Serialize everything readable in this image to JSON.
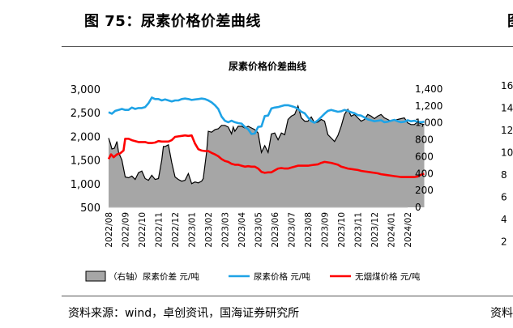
{
  "figure": {
    "title": "图 75：尿素价格价差曲线",
    "source": "资料来源：wind，卓创资讯，国海证券研究所",
    "right_title_fragment": "图",
    "right_source_fragment": "资料"
  },
  "right_axis_fragment": [
    "16",
    "14",
    "12",
    "10",
    "8",
    "6",
    "4",
    "2"
  ],
  "colors": {
    "area": "#a6a6a6",
    "urea": "#1fa3e6",
    "coal": "#ff0000"
  },
  "chart_data": {
    "type": "line",
    "title": "尿素价格价差曲线",
    "left_axis": {
      "min": 500,
      "max": 3000,
      "ticks": [
        "3,000",
        "2,500",
        "2,000",
        "1,500",
        "1,000",
        "500"
      ]
    },
    "right_axis": {
      "min": 0,
      "max": 1400,
      "ticks": [
        "1,400",
        "1,200",
        "1,000",
        "800",
        "600",
        "400",
        "200",
        "0"
      ]
    },
    "x_ticks": [
      "2022/08",
      "2022/09",
      "2022/10",
      "2022/11",
      "2022/12",
      "2023/01",
      "2023/02",
      "2023/03",
      "2023/04",
      "2023/05",
      "2023/06",
      "2023/07",
      "2023/08",
      "2023/09",
      "2023/10",
      "2023/11",
      "2023/12",
      "2024/01",
      "2024/02"
    ],
    "legend": [
      "（右轴）尿素价差  元/吨",
      "尿素价格  元/吨",
      "无烟煤价格  元/吨"
    ],
    "legend_position": "bottom",
    "grid": false,
    "series": [
      {
        "name": "（右轴）尿素价差  元/吨",
        "type": "area",
        "axis": "right",
        "x": [
          0,
          0.1,
          0.2,
          0.35,
          0.5,
          0.6,
          0.8,
          1.0,
          1.2,
          1.4,
          1.6,
          1.8,
          2.0,
          2.2,
          2.4,
          2.6,
          2.8,
          3.0,
          3.2,
          3.3,
          3.4,
          3.6,
          3.8,
          4.0,
          4.2,
          4.4,
          4.6,
          4.8,
          5.0,
          5.2,
          5.4,
          5.6,
          5.7,
          5.8,
          5.9,
          6.0,
          6.2,
          6.4,
          6.6,
          6.8,
          7.0,
          7.2,
          7.4,
          7.5,
          7.6,
          7.8,
          8.0,
          8.2,
          8.4,
          8.6,
          8.8,
          9.0,
          9.2,
          9.4,
          9.6,
          9.8,
          10.0,
          10.2,
          10.4,
          10.6,
          10.8,
          11.0,
          11.2,
          11.4,
          11.6,
          11.8,
          12.0,
          12.2,
          12.4,
          12.6,
          12.8,
          13.0,
          13.2,
          13.4,
          13.6,
          13.8,
          14.0,
          14.2,
          14.4,
          14.6,
          14.8,
          15.0,
          15.2,
          15.4,
          15.6,
          15.8,
          16.0,
          16.2,
          16.4,
          16.6,
          16.8,
          17.0,
          17.2,
          17.4,
          17.6,
          17.8,
          18.0,
          18.2,
          18.4,
          18.6,
          18.8,
          19.0
        ],
        "values": [
          820,
          760,
          690,
          700,
          780,
          650,
          560,
          360,
          350,
          370,
          330,
          410,
          430,
          340,
          320,
          380,
          330,
          340,
          560,
          720,
          720,
          740,
          530,
          360,
          330,
          310,
          320,
          400,
          280,
          300,
          290,
          310,
          340,
          500,
          650,
          900,
          890,
          920,
          930,
          970,
          970,
          950,
          870,
          950,
          900,
          960,
          960,
          940,
          960,
          940,
          920,
          880,
          650,
          730,
          650,
          870,
          880,
          800,
          880,
          860,
          1040,
          1080,
          1100,
          1200,
          1060,
          1020,
          1020,
          1070,
          1000,
          1010,
          1040,
          1020,
          860,
          820,
          780,
          850,
          960,
          1100,
          1160,
          1080,
          1100,
          1060,
          1020,
          1040,
          1100,
          1080,
          1050,
          1080,
          1100,
          1060,
          1040,
          1020,
          1030,
          1040,
          1050,
          1060,
          1000,
          980,
          980,
          1010,
          990,
          980
        ]
      },
      {
        "name": "尿素价格  元/吨",
        "type": "line",
        "axis": "left",
        "x": [
          0,
          0.2,
          0.4,
          0.6,
          0.8,
          1.0,
          1.2,
          1.4,
          1.6,
          1.8,
          2.0,
          2.2,
          2.4,
          2.6,
          2.8,
          3.0,
          3.2,
          3.4,
          3.6,
          3.8,
          4.0,
          4.2,
          4.4,
          4.6,
          4.8,
          5.0,
          5.2,
          5.4,
          5.6,
          5.8,
          6.0,
          6.2,
          6.4,
          6.6,
          6.8,
          7.0,
          7.2,
          7.4,
          7.6,
          7.8,
          8.0,
          8.2,
          8.4,
          8.6,
          8.8,
          9.0,
          9.2,
          9.4,
          9.6,
          9.8,
          10.0,
          10.2,
          10.4,
          10.6,
          10.8,
          11.0,
          11.2,
          11.4,
          11.6,
          11.8,
          12.0,
          12.2,
          12.4,
          12.6,
          12.8,
          13.0,
          13.2,
          13.4,
          13.6,
          13.8,
          14.0,
          14.2,
          14.4,
          14.6,
          14.8,
          15.0,
          15.2,
          15.4,
          15.6,
          15.8,
          16.0,
          16.2,
          16.4,
          16.6,
          16.8,
          17.0,
          17.2,
          17.4,
          17.6,
          17.8,
          18.0,
          18.2,
          18.4,
          18.6,
          18.8,
          19.0
        ],
        "values": [
          2510,
          2480,
          2540,
          2560,
          2580,
          2560,
          2560,
          2610,
          2580,
          2600,
          2600,
          2620,
          2700,
          2820,
          2790,
          2790,
          2760,
          2780,
          2760,
          2740,
          2760,
          2760,
          2790,
          2800,
          2790,
          2770,
          2780,
          2790,
          2800,
          2790,
          2760,
          2720,
          2660,
          2580,
          2420,
          2330,
          2300,
          2330,
          2300,
          2280,
          2270,
          2200,
          2150,
          2050,
          2060,
          2200,
          2210,
          2430,
          2440,
          2590,
          2610,
          2620,
          2640,
          2660,
          2660,
          2640,
          2620,
          2580,
          2520,
          2490,
          2400,
          2320,
          2290,
          2340,
          2410,
          2480,
          2540,
          2560,
          2540,
          2520,
          2530,
          2560,
          2540,
          2510,
          2490,
          2450,
          2440,
          2400,
          2360,
          2340,
          2320,
          2330,
          2340,
          2300,
          2310,
          2330,
          2350,
          2320,
          2300,
          2310,
          2340,
          2320,
          2330,
          2310,
          2300,
          2310
        ]
      },
      {
        "name": "无烟煤价格  元/吨",
        "type": "line",
        "axis": "left",
        "x": [
          0,
          0.15,
          0.3,
          0.5,
          0.7,
          0.9,
          1.0,
          1.2,
          1.4,
          1.6,
          1.8,
          2.0,
          2.2,
          2.4,
          2.6,
          2.8,
          3.0,
          3.2,
          3.4,
          3.6,
          3.8,
          4.0,
          4.2,
          4.4,
          4.6,
          4.8,
          5.0,
          5.2,
          5.4,
          5.6,
          5.8,
          6.0,
          6.2,
          6.4,
          6.6,
          6.8,
          7.0,
          7.2,
          7.4,
          7.6,
          7.8,
          8.0,
          8.2,
          8.4,
          8.6,
          8.8,
          9.0,
          9.2,
          9.4,
          9.6,
          9.8,
          10.0,
          10.2,
          10.4,
          10.6,
          10.8,
          11.0,
          11.2,
          11.4,
          11.6,
          11.8,
          12.0,
          12.2,
          12.4,
          12.6,
          12.8,
          13.0,
          13.2,
          13.4,
          13.6,
          13.8,
          14.0,
          14.2,
          14.4,
          14.6,
          14.8,
          15.0,
          15.2,
          15.4,
          15.6,
          15.8,
          16.0,
          16.2,
          16.4,
          16.6,
          16.8,
          17.0,
          17.2,
          17.4,
          17.6,
          17.8,
          18.0,
          18.2,
          18.4,
          18.6,
          18.8,
          19.0
        ],
        "values": [
          1520,
          1620,
          1560,
          1620,
          1640,
          1700,
          1950,
          1950,
          1920,
          1900,
          1880,
          1880,
          1880,
          1860,
          1860,
          1870,
          1900,
          1890,
          1890,
          1890,
          1920,
          1990,
          2000,
          2010,
          2020,
          2010,
          2020,
          1850,
          1730,
          1700,
          1690,
          1690,
          1650,
          1620,
          1580,
          1520,
          1480,
          1460,
          1420,
          1400,
          1400,
          1380,
          1360,
          1370,
          1360,
          1360,
          1320,
          1250,
          1230,
          1240,
          1240,
          1280,
          1320,
          1330,
          1320,
          1320,
          1340,
          1360,
          1380,
          1380,
          1380,
          1380,
          1390,
          1400,
          1410,
          1440,
          1460,
          1450,
          1440,
          1420,
          1400,
          1360,
          1340,
          1320,
          1310,
          1300,
          1290,
          1270,
          1260,
          1250,
          1240,
          1230,
          1220,
          1200,
          1190,
          1180,
          1170,
          1160,
          1150,
          1140,
          1140,
          1140,
          1140,
          1140,
          1150,
          1190,
          1210
        ]
      }
    ]
  }
}
